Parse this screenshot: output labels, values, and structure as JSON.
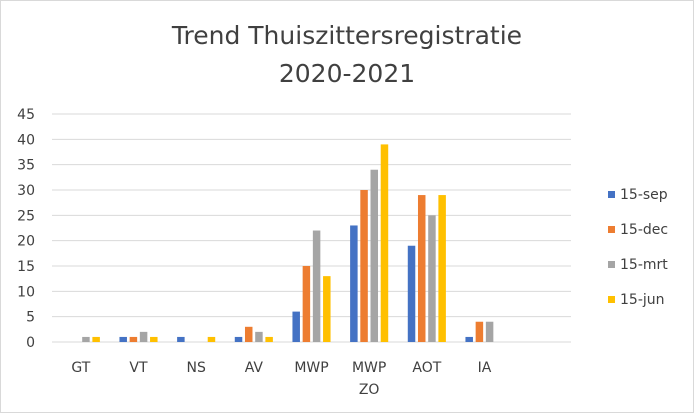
{
  "chart_data": {
    "type": "bar",
    "title": [
      "Trend Thuiszittersregistratie",
      "2020-2021"
    ],
    "categories": [
      [
        "GT"
      ],
      [
        "VT"
      ],
      [
        "NS"
      ],
      [
        "AV"
      ],
      [
        "MWP"
      ],
      [
        "MWP",
        "ZO"
      ],
      [
        "AOT"
      ],
      [
        "IA"
      ],
      [
        ""
      ]
    ],
    "series": [
      {
        "name": "15-sep",
        "color": "#4472c4",
        "values": [
          0,
          1,
          1,
          1,
          6,
          23,
          19,
          1,
          0
        ]
      },
      {
        "name": "15-dec",
        "color": "#ed7d31",
        "values": [
          0,
          1,
          0,
          3,
          15,
          30,
          29,
          4,
          0
        ]
      },
      {
        "name": "15-mrt",
        "color": "#a5a5a5",
        "values": [
          1,
          2,
          0,
          2,
          22,
          34,
          25,
          4,
          0
        ]
      },
      {
        "name": "15-jun",
        "color": "#ffc000",
        "values": [
          1,
          1,
          1,
          1,
          13,
          39,
          29,
          0,
          0
        ]
      }
    ],
    "ylim": [
      0,
      45
    ],
    "yticks": [
      0,
      5,
      10,
      15,
      20,
      25,
      30,
      35,
      40,
      45
    ],
    "grid": true,
    "legend_position": "right"
  }
}
